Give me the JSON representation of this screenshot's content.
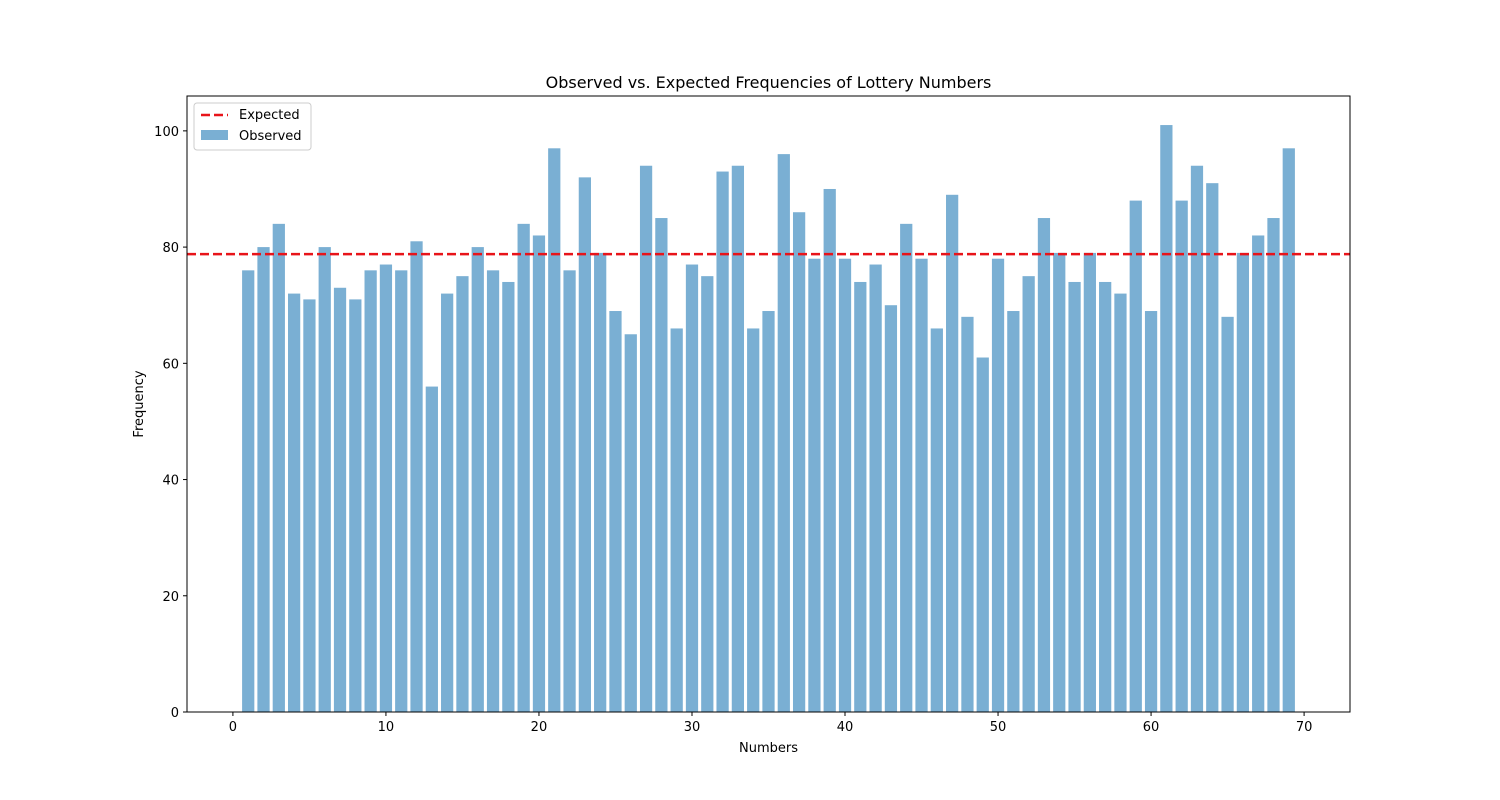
{
  "chart_data": {
    "type": "bar",
    "title": "Observed vs. Expected Frequencies of Lottery Numbers",
    "xlabel": "Numbers",
    "ylabel": "Frequency",
    "xlim": [
      -3,
      73
    ],
    "ylim": [
      0,
      106
    ],
    "xticks": [
      0,
      10,
      20,
      30,
      40,
      50,
      60,
      70
    ],
    "yticks": [
      0,
      20,
      40,
      60,
      80,
      100
    ],
    "grid": false,
    "legend_position": "top-left",
    "series": [
      {
        "name": "Observed",
        "color": "#7aafd3",
        "x": [
          1,
          2,
          3,
          4,
          5,
          6,
          7,
          8,
          9,
          10,
          11,
          12,
          13,
          14,
          15,
          16,
          17,
          18,
          19,
          20,
          21,
          22,
          23,
          24,
          25,
          26,
          27,
          28,
          29,
          30,
          31,
          32,
          33,
          34,
          35,
          36,
          37,
          38,
          39,
          40,
          41,
          42,
          43,
          44,
          45,
          46,
          47,
          48,
          49,
          50,
          51,
          52,
          53,
          54,
          55,
          56,
          57,
          58,
          59,
          60,
          61,
          62,
          63,
          64,
          65,
          66,
          67,
          68,
          69
        ],
        "values": [
          76,
          80,
          84,
          72,
          71,
          80,
          73,
          71,
          76,
          77,
          76,
          81,
          56,
          72,
          75,
          80,
          76,
          74,
          84,
          82,
          97,
          76,
          92,
          79,
          69,
          65,
          94,
          85,
          66,
          77,
          75,
          93,
          94,
          66,
          69,
          96,
          86,
          78,
          90,
          78,
          74,
          77,
          70,
          84,
          78,
          66,
          89,
          68,
          61,
          78,
          69,
          75,
          85,
          79,
          74,
          79,
          74,
          72,
          88,
          69,
          101,
          88,
          94,
          91,
          68,
          79,
          82,
          85,
          97
        ]
      },
      {
        "name": "Expected",
        "type": "hline",
        "color": "#e8141a",
        "value": 78.8
      }
    ]
  }
}
